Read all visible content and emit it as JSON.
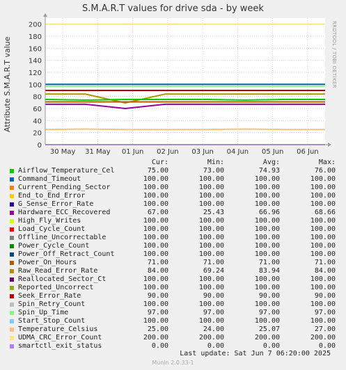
{
  "title": "S.M.A.R.T values for drive sda - by week",
  "ylabel": "Attribute S.M.A.R.T value",
  "side_label": "RRDTOOL / TOBI OETIKER",
  "legend_headers": {
    "cur": "Cur:",
    "min": "Min:",
    "avg": "Avg:",
    "max": "Max:"
  },
  "legend": [
    {
      "name": "Airflow_Temperature_Cel",
      "color": "#00cc00",
      "cur": "75.00",
      "min": "73.00",
      "avg": "74.93",
      "max": "76.00"
    },
    {
      "name": "Command_Timeout",
      "color": "#0066b3",
      "cur": "100.00",
      "min": "100.00",
      "avg": "100.00",
      "max": "100.00"
    },
    {
      "name": "Current_Pending_Sector",
      "color": "#ff8000",
      "cur": "100.00",
      "min": "100.00",
      "avg": "100.00",
      "max": "100.00"
    },
    {
      "name": "End_to_End_Error",
      "color": "#ffcc00",
      "cur": "100.00",
      "min": "100.00",
      "avg": "100.00",
      "max": "100.00"
    },
    {
      "name": "G_Sense_Error_Rate",
      "color": "#330099",
      "cur": "100.00",
      "min": "100.00",
      "avg": "100.00",
      "max": "100.00"
    },
    {
      "name": "Hardware_ECC_Recovered",
      "color": "#990099",
      "cur": "67.00",
      "min": "25.43",
      "avg": "66.96",
      "max": "68.66"
    },
    {
      "name": "High_Fly_Writes",
      "color": "#ccff00",
      "cur": "100.00",
      "min": "100.00",
      "avg": "100.00",
      "max": "100.00"
    },
    {
      "name": "Load_Cycle_Count",
      "color": "#ff0000",
      "cur": "100.00",
      "min": "100.00",
      "avg": "100.00",
      "max": "100.00"
    },
    {
      "name": "Offline_Uncorrectable",
      "color": "#808080",
      "cur": "100.00",
      "min": "100.00",
      "avg": "100.00",
      "max": "100.00"
    },
    {
      "name": "Power_Cycle_Count",
      "color": "#008f00",
      "cur": "100.00",
      "min": "100.00",
      "avg": "100.00",
      "max": "100.00"
    },
    {
      "name": "Power_Off_Retract_Count",
      "color": "#00487d",
      "cur": "100.00",
      "min": "100.00",
      "avg": "100.00",
      "max": "100.00"
    },
    {
      "name": "Power_On_Hours",
      "color": "#b35a00",
      "cur": "71.00",
      "min": "71.00",
      "avg": "71.00",
      "max": "71.00"
    },
    {
      "name": "Raw_Read_Error_Rate",
      "color": "#b38f00",
      "cur": "84.00",
      "min": "69.24",
      "avg": "83.94",
      "max": "84.00"
    },
    {
      "name": "Reallocated_Sector_Ct",
      "color": "#6b006b",
      "cur": "100.00",
      "min": "100.00",
      "avg": "100.00",
      "max": "100.00"
    },
    {
      "name": "Reported_Uncorrect",
      "color": "#8fb300",
      "cur": "100.00",
      "min": "100.00",
      "avg": "100.00",
      "max": "100.00"
    },
    {
      "name": "Seek_Error_Rate",
      "color": "#b30000",
      "cur": "90.00",
      "min": "90.00",
      "avg": "90.00",
      "max": "90.00"
    },
    {
      "name": "Spin_Retry_Count",
      "color": "#bebebe",
      "cur": "100.00",
      "min": "100.00",
      "avg": "100.00",
      "max": "100.00"
    },
    {
      "name": "Spin_Up_Time",
      "color": "#80ff80",
      "cur": "97.00",
      "min": "97.00",
      "avg": "97.00",
      "max": "97.00"
    },
    {
      "name": "Start_Stop_Count",
      "color": "#80c9ff",
      "cur": "100.00",
      "min": "100.00",
      "avg": "100.00",
      "max": "100.00"
    },
    {
      "name": "Temperature_Celsius",
      "color": "#ffc080",
      "cur": "25.00",
      "min": "24.00",
      "avg": "25.07",
      "max": "27.00"
    },
    {
      "name": "UDMA_CRC_Error_Count",
      "color": "#ffe680",
      "cur": "200.00",
      "min": "200.00",
      "avg": "200.00",
      "max": "200.00"
    },
    {
      "name": "smartctl_exit_status",
      "color": "#aa80ff",
      "cur": "0.00",
      "min": "0.00",
      "avg": "0.00",
      "max": "0.00"
    }
  ],
  "footer": "Last update:  Sat Jun  7 06:20:00 2025",
  "munin": "Munin 2.0.33-1",
  "chart_data": {
    "type": "line",
    "title": "S.M.A.R.T values for drive sda - by week",
    "xlabel": "",
    "ylabel": "Attribute S.M.A.R.T value",
    "ylim": [
      0,
      210
    ],
    "yticks": [
      0,
      20,
      40,
      60,
      80,
      100,
      120,
      140,
      160,
      180,
      200
    ],
    "xticks": [
      "30 May",
      "31 May",
      "01 Jun",
      "02 Jun",
      "03 Jun",
      "04 Jun",
      "05 Jun",
      "06 Jun"
    ],
    "grid": true,
    "series": [
      {
        "name": "UDMA_CRC_Error_Count",
        "color": "#ffe680",
        "values": [
          200,
          200,
          200,
          200,
          200,
          200,
          200,
          200
        ]
      },
      {
        "name": "Command_Timeout",
        "color": "#0066b3",
        "values": [
          100,
          100,
          100,
          100,
          100,
          100,
          100,
          100
        ]
      },
      {
        "name": "Spin_Up_Time",
        "color": "#80ff80",
        "values": [
          97,
          97,
          97,
          97,
          97,
          97,
          97,
          97
        ]
      },
      {
        "name": "Seek_Error_Rate",
        "color": "#b30000",
        "values": [
          90,
          90,
          90,
          90,
          90,
          90,
          90,
          90
        ]
      },
      {
        "name": "Raw_Read_Error_Rate",
        "color": "#b38f00",
        "values": [
          84,
          84,
          69.24,
          84,
          84,
          84,
          84,
          84
        ]
      },
      {
        "name": "Airflow_Temperature_Cel",
        "color": "#00cc00",
        "values": [
          75,
          74,
          75,
          75,
          75,
          74,
          75,
          75
        ]
      },
      {
        "name": "Power_On_Hours",
        "color": "#b35a00",
        "values": [
          71,
          71,
          71,
          71,
          71,
          71,
          71,
          71
        ]
      },
      {
        "name": "Hardware_ECC_Recovered",
        "color": "#990099",
        "values": [
          67,
          67,
          60,
          67,
          67,
          67,
          67,
          67
        ]
      },
      {
        "name": "Temperature_Celsius",
        "color": "#ffc080",
        "values": [
          25,
          26,
          25,
          25,
          25,
          26,
          25,
          25
        ]
      },
      {
        "name": "smartctl_exit_status",
        "color": "#aa80ff",
        "values": [
          0,
          0,
          0,
          0,
          0,
          0,
          0,
          0
        ]
      }
    ]
  }
}
